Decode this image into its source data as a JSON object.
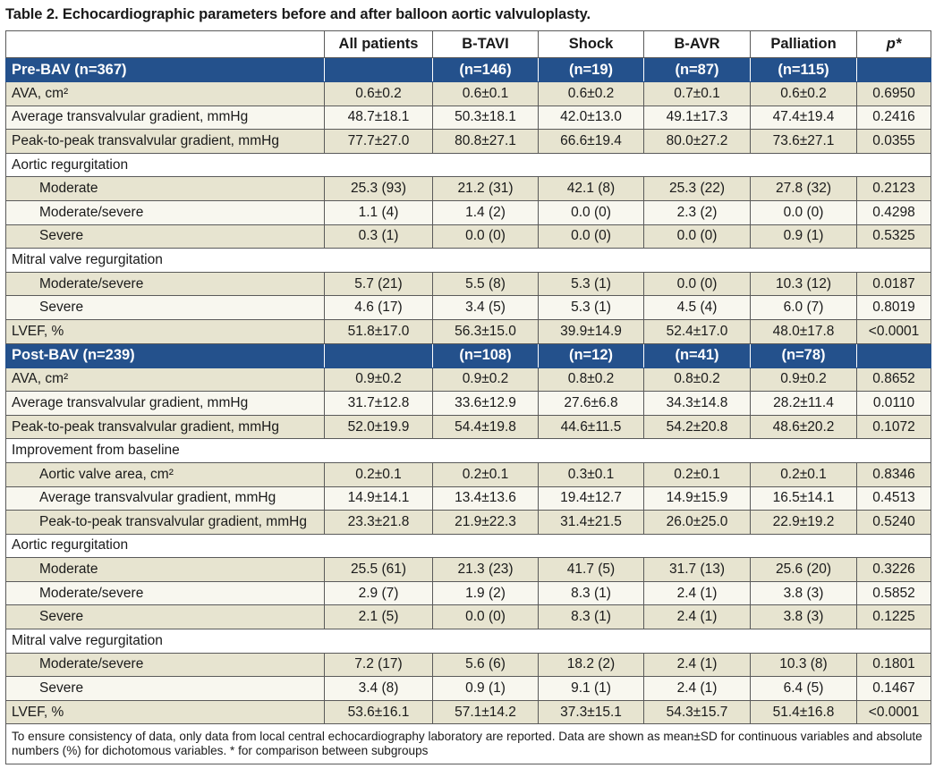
{
  "caption": "Table 2. Echocardiographic parameters before and after balloon aortic valvuloplasty.",
  "columns": [
    "",
    "All patients",
    "B-TAVI",
    "Shock",
    "B-AVR",
    "Palliation",
    "p*"
  ],
  "pre": {
    "title": "Pre-BAV (n=367)",
    "counts": [
      "",
      "(n=146)",
      "(n=19)",
      "(n=87)",
      "(n=115)",
      ""
    ],
    "rows": [
      {
        "label": "AVA, cm²",
        "values": [
          "0.6±0.2",
          "0.6±0.1",
          "0.6±0.2",
          "0.7±0.1",
          "0.6±0.2",
          "0.6950"
        ]
      },
      {
        "label": "Average transvalvular gradient, mmHg",
        "values": [
          "48.7±18.1",
          "50.3±18.1",
          "42.0±13.0",
          "49.1±17.3",
          "47.4±19.4",
          "0.2416"
        ]
      },
      {
        "label": "Peak-to-peak transvalvular gradient, mmHg",
        "values": [
          "77.7±27.0",
          "80.8±27.1",
          "66.6±19.4",
          "80.0±27.2",
          "73.6±27.1",
          "0.0355"
        ]
      }
    ],
    "ar_label": "Aortic regurgitation",
    "ar_rows": [
      {
        "label": "Moderate",
        "values": [
          "25.3 (93)",
          "21.2 (31)",
          "42.1 (8)",
          "25.3 (22)",
          "27.8 (32)",
          "0.2123"
        ]
      },
      {
        "label": "Moderate/severe",
        "values": [
          "1.1 (4)",
          "1.4 (2)",
          "0.0 (0)",
          "2.3 (2)",
          "0.0 (0)",
          "0.4298"
        ]
      },
      {
        "label": "Severe",
        "values": [
          "0.3 (1)",
          "0.0 (0)",
          "0.0 (0)",
          "0.0 (0)",
          "0.9 (1)",
          "0.5325"
        ]
      }
    ],
    "mr_label": "Mitral valve regurgitation",
    "mr_rows": [
      {
        "label": "Moderate/severe",
        "values": [
          "5.7 (21)",
          "5.5 (8)",
          "5.3 (1)",
          "0.0 (0)",
          "10.3 (12)",
          "0.0187"
        ]
      },
      {
        "label": "Severe",
        "values": [
          "4.6 (17)",
          "3.4 (5)",
          "5.3 (1)",
          "4.5 (4)",
          "6.0 (7)",
          "0.8019"
        ]
      }
    ],
    "lvef": {
      "label": "LVEF, %",
      "values": [
        "51.8±17.0",
        "56.3±15.0",
        "39.9±14.9",
        "52.4±17.0",
        "48.0±17.8",
        "<0.0001"
      ]
    }
  },
  "post": {
    "title": "Post-BAV (n=239)",
    "counts": [
      "",
      "(n=108)",
      "(n=12)",
      "(n=41)",
      "(n=78)",
      ""
    ],
    "rows": [
      {
        "label": "AVA, cm²",
        "values": [
          "0.9±0.2",
          "0.9±0.2",
          "0.8±0.2",
          "0.8±0.2",
          "0.9±0.2",
          "0.8652"
        ]
      },
      {
        "label": "Average transvalvular gradient, mmHg",
        "values": [
          "31.7±12.8",
          "33.6±12.9",
          "27.6±6.8",
          "34.3±14.8",
          "28.2±11.4",
          "0.0110"
        ]
      },
      {
        "label": "Peak-to-peak transvalvular gradient, mmHg",
        "values": [
          "52.0±19.9",
          "54.4±19.8",
          "44.6±11.5",
          "54.2±20.8",
          "48.6±20.2",
          "0.1072"
        ]
      }
    ],
    "imp_label": "Improvement from baseline",
    "imp_rows": [
      {
        "label": "Aortic valve area, cm²",
        "values": [
          "0.2±0.1",
          "0.2±0.1",
          "0.3±0.1",
          "0.2±0.1",
          "0.2±0.1",
          "0.8346"
        ]
      },
      {
        "label": "Average transvalvular gradient, mmHg",
        "values": [
          "14.9±14.1",
          "13.4±13.6",
          "19.4±12.7",
          "14.9±15.9",
          "16.5±14.1",
          "0.4513"
        ]
      },
      {
        "label": "Peak-to-peak transvalvular gradient, mmHg",
        "values": [
          "23.3±21.8",
          "21.9±22.3",
          "31.4±21.5",
          "26.0±25.0",
          "22.9±19.2",
          "0.5240"
        ]
      }
    ],
    "ar_label": "Aortic regurgitation",
    "ar_rows": [
      {
        "label": "Moderate",
        "values": [
          "25.5 (61)",
          "21.3 (23)",
          "41.7 (5)",
          "31.7 (13)",
          "25.6 (20)",
          "0.3226"
        ]
      },
      {
        "label": "Moderate/severe",
        "values": [
          "2.9 (7)",
          "1.9 (2)",
          "8.3 (1)",
          "2.4 (1)",
          "3.8 (3)",
          "0.5852"
        ]
      },
      {
        "label": "Severe",
        "values": [
          "2.1 (5)",
          "0.0 (0)",
          "8.3 (1)",
          "2.4 (1)",
          "3.8 (3)",
          "0.1225"
        ]
      }
    ],
    "mr_label": "Mitral valve regurgitation",
    "mr_rows": [
      {
        "label": "Moderate/severe",
        "values": [
          "7.2 (17)",
          "5.6 (6)",
          "18.2 (2)",
          "2.4 (1)",
          "10.3 (8)",
          "0.1801"
        ]
      },
      {
        "label": "Severe",
        "values": [
          "3.4 (8)",
          "0.9 (1)",
          "9.1 (1)",
          "2.4 (1)",
          "6.4 (5)",
          "0.1467"
        ]
      }
    ],
    "lvef": {
      "label": "LVEF, %",
      "values": [
        "53.6±16.1",
        "57.1±14.2",
        "37.3±15.1",
        "54.3±15.7",
        "51.4±16.8",
        "<0.0001"
      ]
    }
  },
  "footnote": "To ensure consistency of data, only data from local central echocardiography laboratory are reported. Data are shown as mean±SD for continuous variables and absolute numbers (%) for dichotomous variables. * for comparison between subgroups"
}
